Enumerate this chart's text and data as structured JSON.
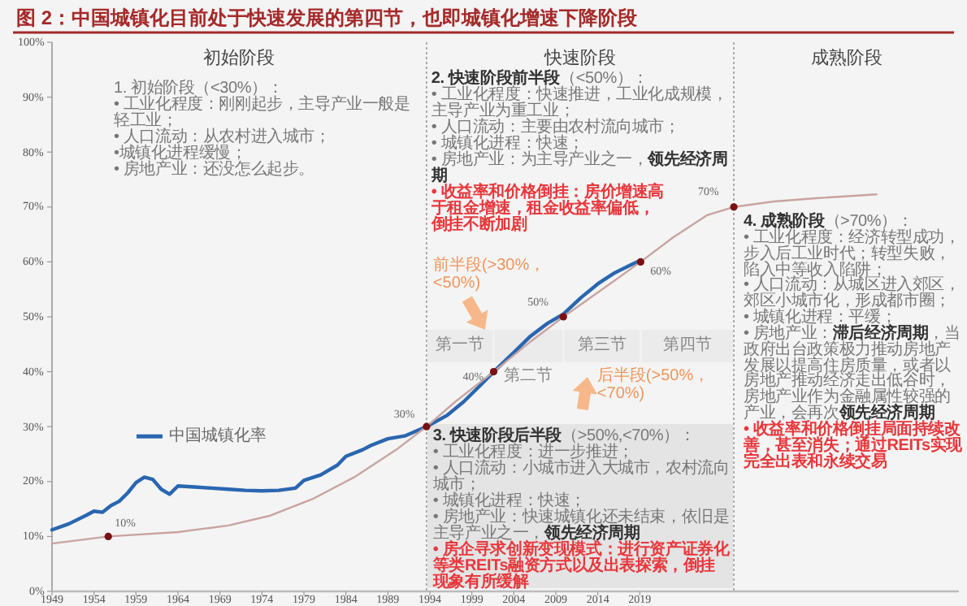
{
  "chart_data": {
    "type": "line",
    "title": "图 2：中国城镇化目前处于快速发展的第四节，也即城镇化增速下降阶段",
    "xlim": [
      1949,
      2057
    ],
    "xticks": [
      1949,
      1954,
      1959,
      1964,
      1969,
      1974,
      1979,
      1984,
      1989,
      1994,
      1999,
      2004,
      2009,
      2014,
      2019
    ],
    "ylim": [
      0,
      100
    ],
    "yticks": [
      {
        "value": 0,
        "label": "0%"
      },
      {
        "value": 10,
        "label": "10%"
      },
      {
        "value": 20,
        "label": "20%"
      },
      {
        "value": 30,
        "label": "30%"
      },
      {
        "value": 40,
        "label": "40%"
      },
      {
        "value": 50,
        "label": "50%"
      },
      {
        "value": 60,
        "label": "60%"
      },
      {
        "value": 70,
        "label": "70%"
      },
      {
        "value": 80,
        "label": "80%"
      },
      {
        "value": 90,
        "label": "90%"
      },
      {
        "value": 100,
        "label": "100%"
      }
    ],
    "legend": "left",
    "series": [
      {
        "name": "中国城镇化率",
        "color": "#2a66b0",
        "x": [
          1949,
          1951,
          1953,
          1954,
          1955,
          1956,
          1957,
          1958,
          1959,
          1960,
          1961,
          1962,
          1963,
          1964,
          1966,
          1968,
          1970,
          1972,
          1974,
          1976,
          1978,
          1979,
          1981,
          1983,
          1984,
          1986,
          1987,
          1989,
          1991,
          1993.6,
          1996,
          1998,
          2000,
          2001.6,
          2004,
          2006,
          2008,
          2009.9,
          2012,
          2014,
          2016,
          2018,
          2019.1
        ],
        "values": [
          11.2,
          12.3,
          13.8,
          14.6,
          14.4,
          15.6,
          16.4,
          17.9,
          19.8,
          20.8,
          20.4,
          18.6,
          17.7,
          19.2,
          19.0,
          18.8,
          18.6,
          18.4,
          18.3,
          18.4,
          18.8,
          20.2,
          21.2,
          23.0,
          24.6,
          25.8,
          26.6,
          27.8,
          28.3,
          30,
          32,
          34.5,
          37.5,
          40,
          43.5,
          46.5,
          48.8,
          50.5,
          53.5,
          56,
          58,
          59.5,
          60.3
        ]
      },
      {
        "color": "#c8a4a0",
        "x": [
          1949,
          1955.7,
          1964,
          1970,
          1975,
          1980,
          1985,
          1990,
          1993.6,
          1997,
          2001.6,
          2006,
          2009.9,
          2015,
          2019.1,
          2023,
          2027,
          2030.2,
          2035,
          2040,
          2047.2
        ],
        "values": [
          8.7,
          10,
          10.8,
          12,
          13.8,
          16.8,
          20.8,
          25.8,
          30,
          34.5,
          40,
          45.5,
          50,
          55.5,
          60,
          64.5,
          68.5,
          70,
          71,
          71.6,
          72.3
        ]
      },
      {
        "type": "scatter",
        "marker": "circle",
        "color": "#7a1010",
        "x": [
          1955.7,
          1993.6,
          2001.6,
          2009.9,
          2019.1,
          2030.2
        ],
        "values": [
          10,
          30,
          40,
          50,
          60,
          70
        ]
      }
    ],
    "ref_lines": [
      {
        "axis": "x",
        "value": 1993.6,
        "line_style": "dotted"
      },
      {
        "axis": "x",
        "value": 2030.2,
        "line_style": "dotted"
      }
    ],
    "bands": [
      {
        "axis": "x",
        "from": 1993.6,
        "to": 2001.6,
        "label": "第一节",
        "color": "#ebebeb"
      },
      {
        "axis": "x",
        "from": 2001.6,
        "to": 2009.9,
        "label": "第二节",
        "color": "#ebebeb"
      },
      {
        "axis": "x",
        "from": 2009.9,
        "to": 2019.1,
        "label": "第三节",
        "color": "#ebebeb"
      },
      {
        "axis": "x",
        "from": 2019.1,
        "to": 2030.2,
        "label": "第四节",
        "color": "#ebebeb"
      }
    ],
    "annotations": [
      "初始阶段",
      "快速阶段",
      "成熟阶段",
      "1. 初始阶段（<30%）：",
      "• 工业化程度：刚刚起步，主导产业一般是轻工业；",
      "• 人口流动：从农村进入城市；",
      "•城镇化进程缓慢；",
      "• 房地产业：还没怎么起步。",
      "**2. 快速阶段前半段**（<50%）：",
      "• 工业化程度：快速推进，工业化成规模，主导产业为重工业；",
      "• 人口流动：主要由农村流向城市；",
      "• 城镇化进程：快速；",
      "• 房地产业：为主导产业之一，**领先经济周期**",
      "• 收益率和价格倒挂：房价增速高于租金增速，租金收益率偏低，倒挂不断加剧",
      "**3. 快速阶段后半段**（>50%,<70%）：",
      "• 工业化程度：进一步推进；",
      "• 人口流动：小城市进入大城市，农村流向城市；",
      "• 城镇化进程：快速；",
      "• 房地产业：快速城镇化还未结束，依旧是主导产业之一，**领先经济周期**",
      "• 房企寻求创新变现模式：进行资产证券化等类REITs融资方式以及出表探索，倒挂现象有所缓解",
      "**4. 成熟阶段**（>70%）：",
      "• 工业化程度：经济转型成功，步入后工业时代；转型失败，陷入中等收入陷阱；",
      "• 人口流动：从城区进入郊区，郊区小城市化，形成都市圈；",
      "• 城镇化进程：平缓；",
      "• 房地产业：**滞后经济周期**，当政府出台政策极力推动房地产发展以提高住房质量，或者以房地产推动经济走出低谷时，房地产业作为金融属性较强的产业，会再次**领先经济周期**",
      "• 收益率和价格倒挂局面持续改善，甚至消失；通过REITs实现完全出表和永续交易",
      "前半段(>30%，<50%)",
      "后半段(>50%，<70%)",
      {
        "text": "10%",
        "x": 1955.7,
        "y": 10
      },
      {
        "text": "30%",
        "x": 1993.6,
        "y": 30
      },
      {
        "text": "40%",
        "x": 2001.6,
        "y": 40
      },
      {
        "text": "50%",
        "x": 2009.9,
        "y": 50
      },
      {
        "text": "60%",
        "x": 2019.1,
        "y": 60
      },
      {
        "text": "70%",
        "x": 2030.2,
        "y": 70
      }
    ]
  }
}
